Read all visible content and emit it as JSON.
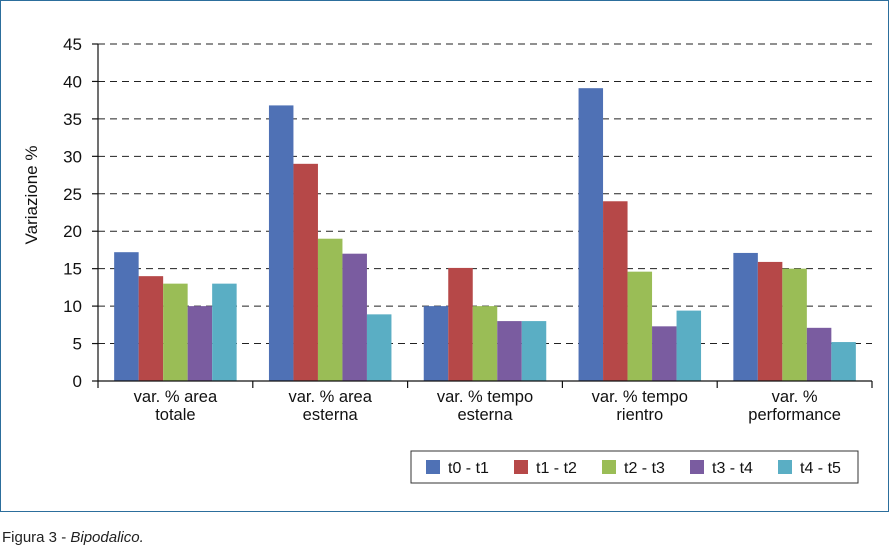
{
  "chart_data": {
    "type": "bar",
    "ylabel": "Variazione %",
    "ylim": [
      0,
      45
    ],
    "yticks": [
      0,
      5,
      10,
      15,
      20,
      25,
      30,
      35,
      40,
      45
    ],
    "grid": true,
    "legend_position": "bottom-right",
    "categories": [
      [
        "var. % area",
        "totale"
      ],
      [
        "var. % area",
        "esterna"
      ],
      [
        "var. % tempo",
        "esterna"
      ],
      [
        "var. % tempo",
        "rientro"
      ],
      [
        "var. %",
        "performance"
      ]
    ],
    "series": [
      {
        "name": "t0 - t1",
        "color": "#4f71b5",
        "values": [
          17.2,
          36.8,
          10.0,
          39.1,
          17.1
        ]
      },
      {
        "name": "t1 - t2",
        "color": "#b64848",
        "values": [
          14.0,
          29.0,
          15.1,
          24.0,
          15.9
        ]
      },
      {
        "name": "t2 - t3",
        "color": "#9abd56",
        "values": [
          13.0,
          19.0,
          10.0,
          14.6,
          15.0
        ]
      },
      {
        "name": "t3 - t4",
        "color": "#7a5ca0",
        "values": [
          10.0,
          17.0,
          8.0,
          7.3,
          7.1
        ]
      },
      {
        "name": "t4 - t5",
        "color": "#5aaec4",
        "values": [
          13.0,
          8.9,
          8.0,
          9.4,
          5.2
        ]
      }
    ]
  },
  "caption": {
    "label": "Figura 3",
    "separator": " - ",
    "text": "Bipodalico."
  }
}
